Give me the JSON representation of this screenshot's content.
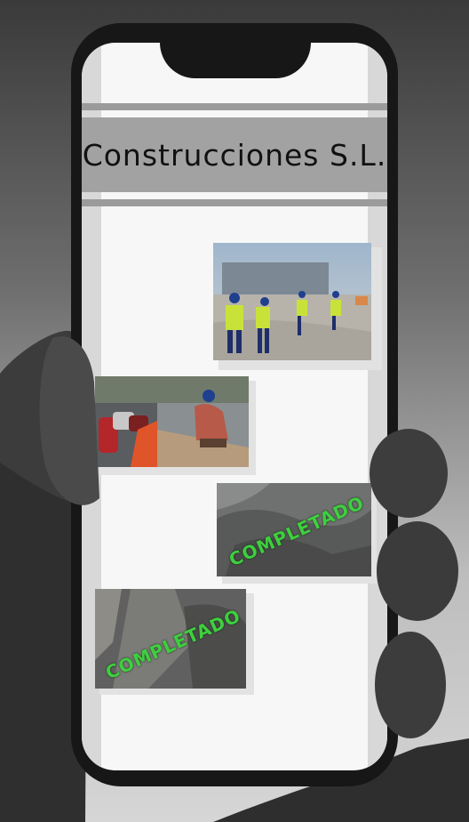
{
  "app": {
    "brand_title": "Construcciones S.L."
  },
  "gallery": {
    "photos": [
      {
        "label": "workers-walking-site",
        "status": ""
      },
      {
        "label": "worker-laying-road",
        "status": ""
      },
      {
        "label": "completed-work-1",
        "status": "COMPLETADO"
      },
      {
        "label": "completed-work-2",
        "status": "COMPLETADO"
      }
    ]
  },
  "colors": {
    "phone_body": "#171717",
    "screen_bg": "#f7f7f7",
    "header_band": "#a2a2a2",
    "stamp_green": "#3fcf3f"
  }
}
